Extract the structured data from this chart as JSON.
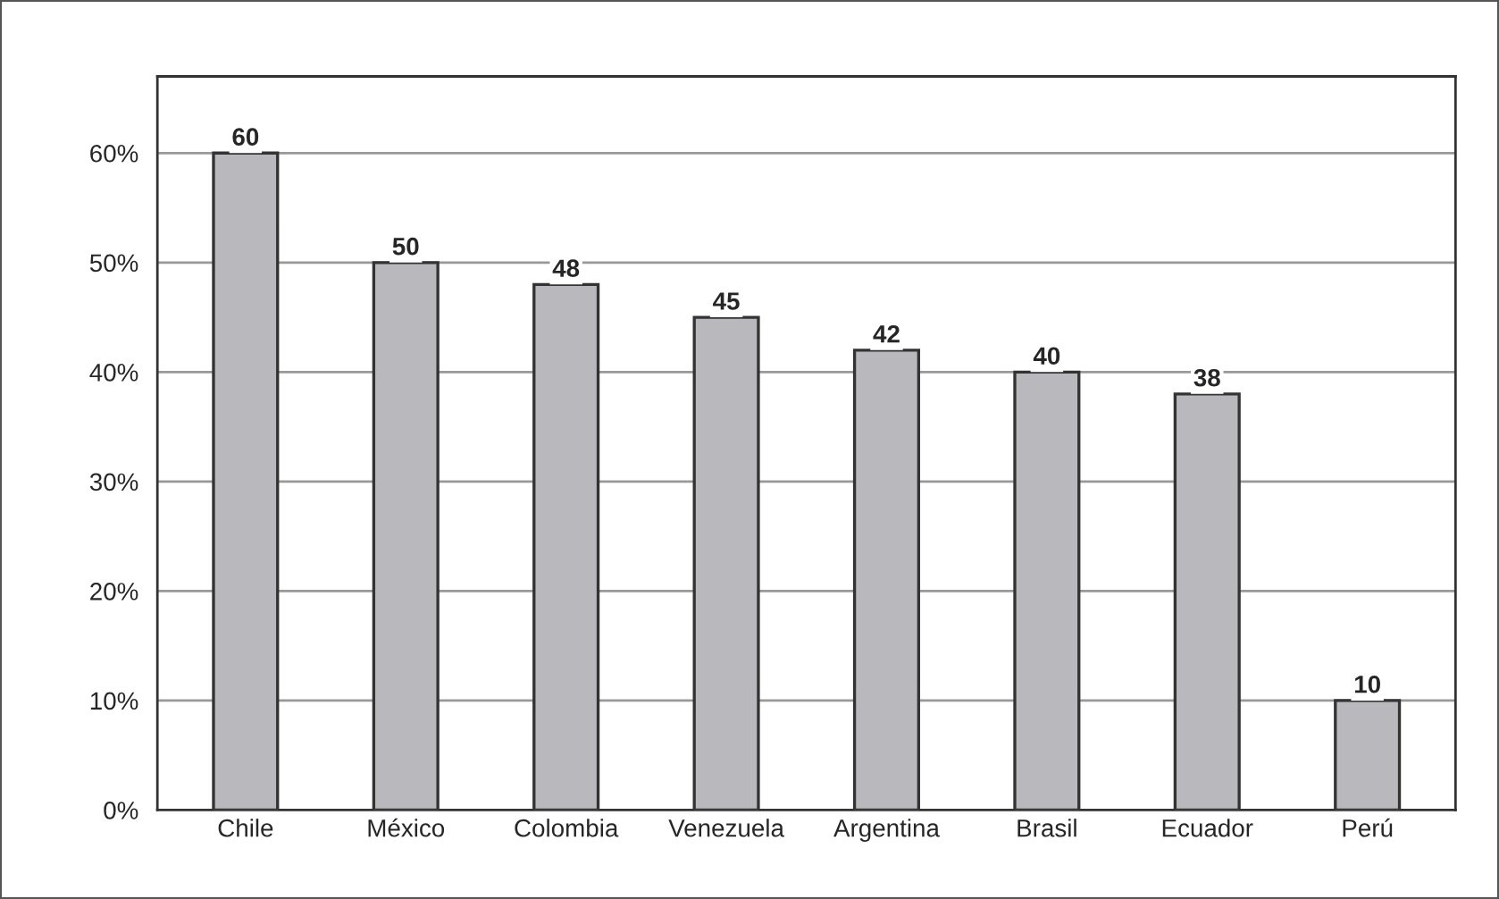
{
  "chart_data": {
    "type": "bar",
    "categories": [
      "Chile",
      "México",
      "Colombia",
      "Venezuela",
      "Argentina",
      "Brasil",
      "Ecuador",
      "Perú"
    ],
    "values": [
      60,
      50,
      48,
      45,
      42,
      40,
      38,
      10
    ],
    "color": "#b9b9bd",
    "ylim": [
      0,
      67
    ],
    "yticks": [
      {
        "value": 0,
        "label": "0%"
      },
      {
        "value": 10,
        "label": "10%"
      },
      {
        "value": 20,
        "label": "20%"
      },
      {
        "value": 30,
        "label": "30%"
      },
      {
        "value": 40,
        "label": "40%"
      },
      {
        "value": 50,
        "label": "50%"
      },
      {
        "value": 60,
        "label": "60%"
      }
    ],
    "grid": "y",
    "data_labels": true
  }
}
